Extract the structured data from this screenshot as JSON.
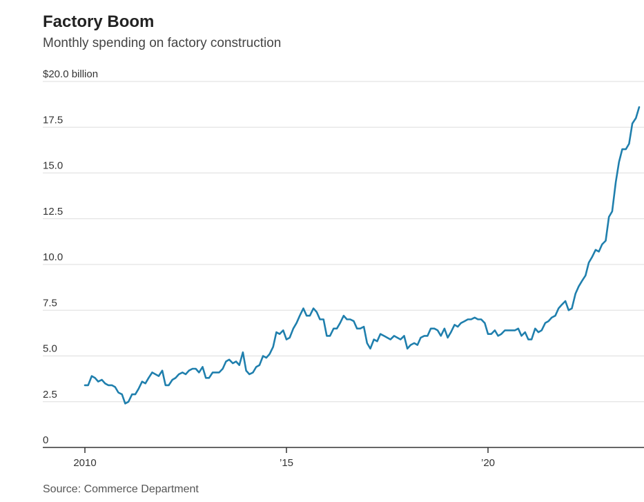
{
  "header": {
    "title": "Factory Boom",
    "subtitle": "Monthly spending on factory construction"
  },
  "footer": {
    "source": "Source: Commerce Department"
  },
  "colors": {
    "line": "#1f7fad",
    "grid": "#dddddd",
    "axis": "#333333"
  },
  "chart_data": {
    "type": "line",
    "title": "Factory Boom",
    "subtitle": "Monthly spending on factory construction",
    "xlabel": "",
    "ylabel": "",
    "y_unit_label": "$20.0 billion",
    "ylim": [
      0,
      20
    ],
    "yticks": [
      0,
      2.5,
      5,
      7.5,
      10,
      12.5,
      15,
      17.5,
      20
    ],
    "ytick_labels": [
      "0",
      "2.5",
      "5.0",
      "7.5",
      "10.0",
      "12.5",
      "15.0",
      "17.5",
      "$20.0 billion"
    ],
    "xlim": [
      2009.5,
      2023.9
    ],
    "xticks": [
      2010,
      2015,
      2020
    ],
    "xtick_labels": [
      "2010",
      "’15",
      "’20"
    ],
    "grid": true,
    "legend": "none",
    "series": [
      {
        "x": [
          2010.0,
          2010.08,
          2010.17,
          2010.25,
          2010.33,
          2010.42,
          2010.5,
          2010.58,
          2010.67,
          2010.75,
          2010.83,
          2010.92,
          2011.0,
          2011.08,
          2011.17,
          2011.25,
          2011.33,
          2011.42,
          2011.5,
          2011.58,
          2011.67,
          2011.75,
          2011.83,
          2011.92,
          2012.0,
          2012.08,
          2012.17,
          2012.25,
          2012.33,
          2012.42,
          2012.5,
          2012.58,
          2012.67,
          2012.75,
          2012.83,
          2012.92,
          2013.0,
          2013.08,
          2013.17,
          2013.25,
          2013.33,
          2013.42,
          2013.5,
          2013.58,
          2013.67,
          2013.75,
          2013.83,
          2013.92,
          2014.0,
          2014.08,
          2014.17,
          2014.25,
          2014.33,
          2014.42,
          2014.5,
          2014.58,
          2014.67,
          2014.75,
          2014.83,
          2014.92,
          2015.0,
          2015.08,
          2015.17,
          2015.25,
          2015.33,
          2015.42,
          2015.5,
          2015.58,
          2015.67,
          2015.75,
          2015.83,
          2015.92,
          2016.0,
          2016.08,
          2016.17,
          2016.25,
          2016.33,
          2016.42,
          2016.5,
          2016.58,
          2016.67,
          2016.75,
          2016.83,
          2016.92,
          2017.0,
          2017.08,
          2017.17,
          2017.25,
          2017.33,
          2017.42,
          2017.5,
          2017.58,
          2017.67,
          2017.75,
          2017.83,
          2017.92,
          2018.0,
          2018.08,
          2018.17,
          2018.25,
          2018.33,
          2018.42,
          2018.5,
          2018.58,
          2018.67,
          2018.75,
          2018.83,
          2018.92,
          2019.0,
          2019.08,
          2019.17,
          2019.25,
          2019.33,
          2019.42,
          2019.5,
          2019.58,
          2019.67,
          2019.75,
          2019.83,
          2019.92,
          2020.0,
          2020.08,
          2020.17,
          2020.25,
          2020.33,
          2020.42,
          2020.5,
          2020.58,
          2020.67,
          2020.75,
          2020.83,
          2020.92,
          2021.0,
          2021.08,
          2021.17,
          2021.25,
          2021.33,
          2021.42,
          2021.5,
          2021.58,
          2021.67,
          2021.75,
          2021.83,
          2021.92,
          2022.0,
          2022.08,
          2022.17,
          2022.25,
          2022.33,
          2022.42,
          2022.5,
          2022.58,
          2022.67,
          2022.75,
          2022.83,
          2022.92,
          2023.0,
          2023.08,
          2023.17,
          2023.25,
          2023.33,
          2023.42,
          2023.5,
          2023.58,
          2023.67,
          2023.75
        ],
        "values": [
          3.4,
          3.4,
          3.9,
          3.8,
          3.6,
          3.7,
          3.5,
          3.4,
          3.4,
          3.3,
          3.0,
          2.9,
          2.4,
          2.5,
          2.9,
          2.9,
          3.2,
          3.6,
          3.5,
          3.8,
          4.1,
          4.0,
          3.9,
          4.2,
          3.4,
          3.4,
          3.7,
          3.8,
          4.0,
          4.1,
          4.0,
          4.2,
          4.3,
          4.3,
          4.1,
          4.4,
          3.8,
          3.8,
          4.1,
          4.1,
          4.1,
          4.3,
          4.7,
          4.8,
          4.6,
          4.7,
          4.5,
          5.2,
          4.2,
          4.0,
          4.1,
          4.4,
          4.5,
          5.0,
          4.9,
          5.1,
          5.5,
          6.3,
          6.2,
          6.4,
          5.9,
          6.0,
          6.5,
          6.8,
          7.2,
          7.6,
          7.2,
          7.2,
          7.6,
          7.4,
          7.0,
          7.0,
          6.1,
          6.1,
          6.5,
          6.5,
          6.8,
          7.2,
          7.0,
          7.0,
          6.9,
          6.5,
          6.5,
          6.6,
          5.7,
          5.4,
          5.9,
          5.8,
          6.2,
          6.1,
          6.0,
          5.9,
          6.1,
          6.0,
          5.9,
          6.1,
          5.4,
          5.6,
          5.7,
          5.6,
          6.0,
          6.1,
          6.1,
          6.5,
          6.5,
          6.4,
          6.1,
          6.5,
          6.0,
          6.3,
          6.7,
          6.6,
          6.8,
          6.9,
          7.0,
          7.0,
          7.1,
          7.0,
          7.0,
          6.8,
          6.2,
          6.2,
          6.4,
          6.1,
          6.2,
          6.4,
          6.4,
          6.4,
          6.4,
          6.5,
          6.1,
          6.3,
          5.9,
          5.9,
          6.5,
          6.3,
          6.4,
          6.8,
          6.9,
          7.1,
          7.2,
          7.6,
          7.8,
          8.0,
          7.5,
          7.6,
          8.4,
          8.8,
          9.1,
          9.4,
          10.1,
          10.4,
          10.8,
          10.7,
          11.1,
          11.3,
          12.6,
          12.9,
          14.5,
          15.6,
          16.3,
          16.3,
          16.6,
          17.7,
          18.0,
          18.6
        ]
      }
    ]
  }
}
